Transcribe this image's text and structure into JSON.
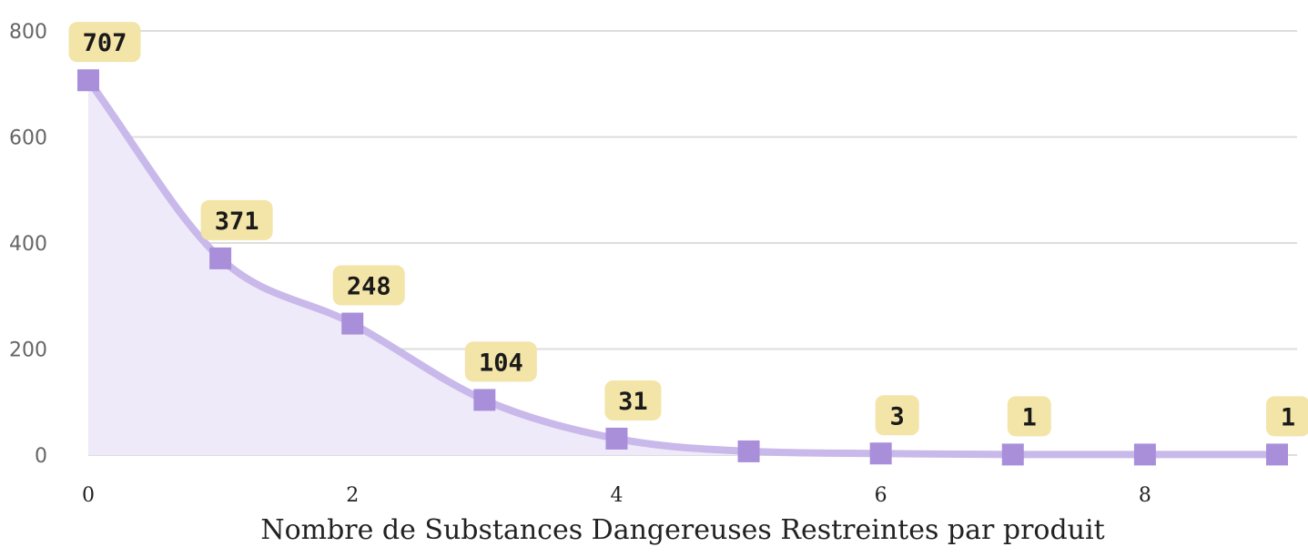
{
  "chart_data": {
    "type": "area",
    "title": "",
    "xlabel": "Nombre de Substances Dangereuses Restreintes par produit",
    "ylabel": "",
    "xlim": [
      0,
      9
    ],
    "ylim": [
      0,
      800
    ],
    "xticks": [
      0,
      2,
      4,
      6,
      8
    ],
    "yticks": [
      0,
      200,
      400,
      600,
      800
    ],
    "grid": true,
    "series": [
      {
        "x": [
          0,
          1,
          2,
          3,
          4,
          5,
          6,
          7,
          8,
          9
        ],
        "values": [
          707,
          371,
          248,
          104,
          31,
          7,
          3,
          1,
          1,
          1
        ],
        "labels": [
          "707",
          "371",
          "248",
          "104",
          "31",
          null,
          "3",
          "1",
          null,
          "1"
        ]
      }
    ],
    "colors": {
      "line": "#c9b8ea",
      "marker": "#a98fda",
      "fill": "#efeaf9",
      "label_bg": "#f3e4a8",
      "grid": "#dddddd"
    }
  }
}
